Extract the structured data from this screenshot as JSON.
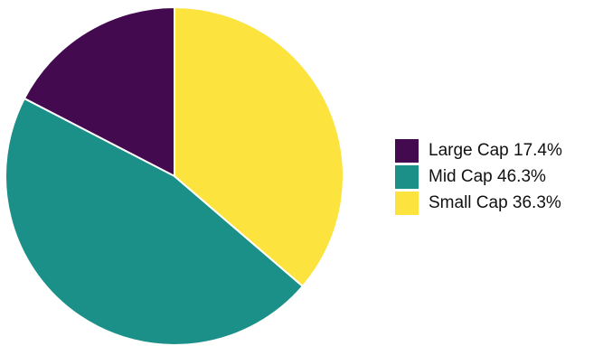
{
  "chart_data": {
    "type": "pie",
    "title": "",
    "categories": [
      "Large Cap",
      "Mid Cap",
      "Small Cap"
    ],
    "values": [
      17.4,
      46.3,
      36.3
    ],
    "labels": [
      "Large Cap 17.4%",
      "Mid Cap 46.3%",
      "Small Cap 36.3%"
    ],
    "colors": [
      "#440a4f",
      "#1a9088",
      "#fce33e"
    ],
    "start_angle_deg": 0,
    "direction": "counterclockwise",
    "legend_position": "right"
  }
}
